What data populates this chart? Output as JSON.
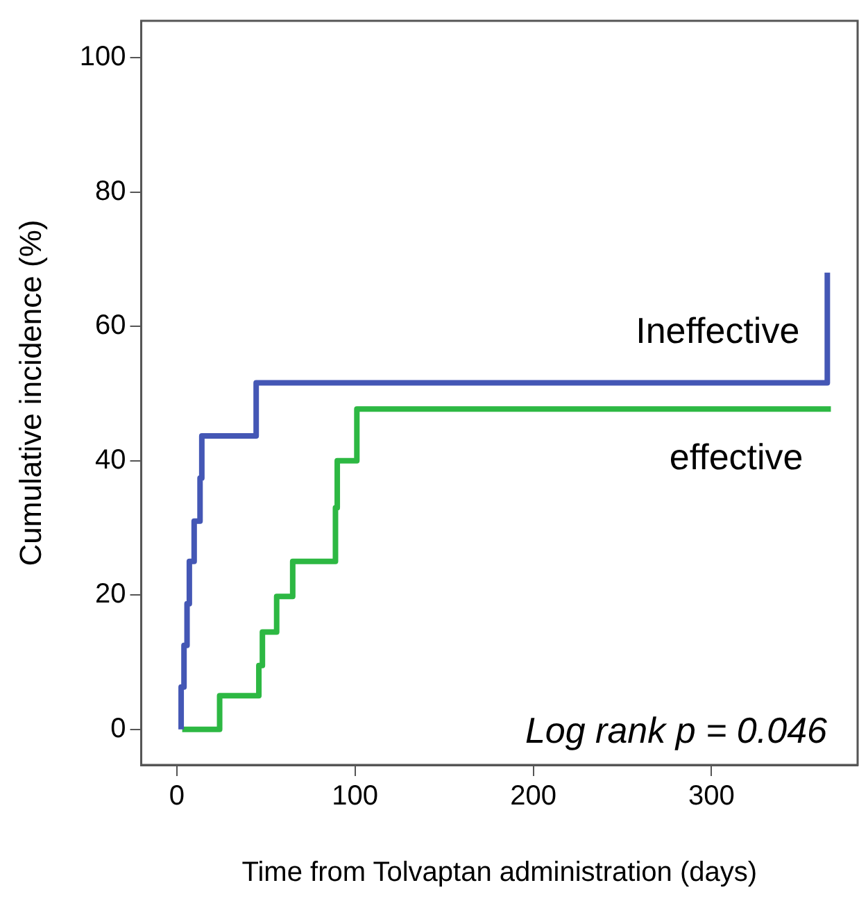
{
  "chart_data": {
    "type": "step",
    "ylabel": "Cumulative incidence (%)",
    "xlabel": "Time from Tolvaptan administration (days)",
    "xlim": [
      -20,
      382
    ],
    "ylim": [
      -5.3,
      105.5
    ],
    "xticks": [
      0,
      100,
      200,
      300
    ],
    "yticks": [
      0,
      20,
      40,
      60,
      80,
      100
    ],
    "grid": false,
    "legend": false,
    "line_style": "solid",
    "marker": "none",
    "annotations": [
      "Log rank p = 0.046"
    ],
    "series": [
      {
        "name": "Ineffective",
        "color": "#4457b5",
        "x": [
          2.4,
          2.4,
          4,
          5.7,
          7,
          9.7,
          13,
          14,
          44.5,
          365,
          365
        ],
        "values": [
          0,
          6.3,
          12.5,
          18.7,
          25,
          31,
          37.4,
          43.7,
          51.6,
          51.6,
          68
        ]
      },
      {
        "name": "effective",
        "color": "#2db843",
        "x": [
          3,
          24,
          46,
          48,
          56,
          65,
          89,
          90,
          101,
          367
        ],
        "values": [
          0,
          5,
          9.5,
          14.5,
          19.8,
          25,
          33,
          40,
          47.7,
          47.7
        ]
      }
    ]
  }
}
